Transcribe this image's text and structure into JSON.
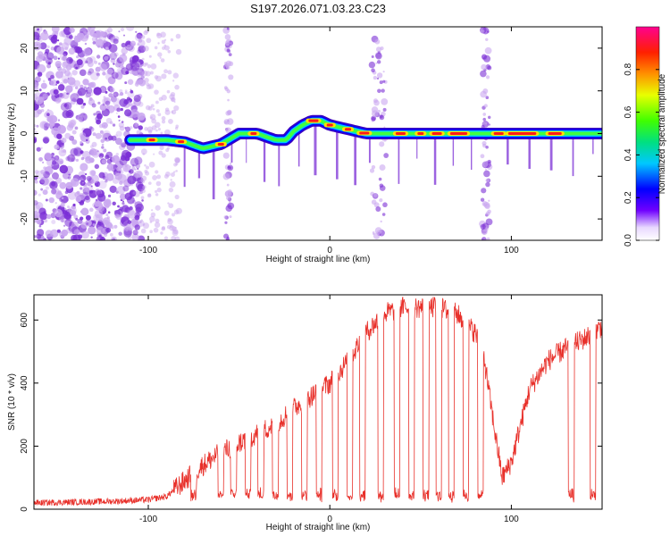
{
  "title": "S197.2026.071.03.23.C23",
  "colors": {
    "snr_line": "#e8302a",
    "background": "#ffffff",
    "noise_purple": "#7b2fd6",
    "noise_light": "#c9a6f0"
  },
  "chart_data": [
    {
      "type": "heatmap",
      "xlabel": "Height of straight line (km)",
      "ylabel": "Frequency (Hz)",
      "xlim": [
        -163,
        150
      ],
      "ylim": [
        -25,
        25
      ],
      "xticks": [
        -100,
        0,
        100
      ],
      "yticks": [
        -20,
        -10,
        0,
        10,
        20
      ],
      "ridge": {
        "x": [
          -110,
          -100,
          -90,
          -80,
          -70,
          -60,
          -50,
          -40,
          -30,
          -24,
          -20,
          -15,
          -10,
          -5,
          0,
          5,
          10,
          15,
          20,
          30,
          40,
          60,
          80,
          100,
          120,
          150
        ],
        "freq": [
          -1.5,
          -1.5,
          -1.5,
          -2,
          -3.5,
          -2.5,
          0,
          0,
          -1.5,
          -1.5,
          0.5,
          2,
          3,
          3,
          2,
          1.5,
          1,
          0.5,
          0,
          0,
          0,
          0,
          0,
          0,
          0,
          0
        ]
      },
      "colorbar": {
        "label": "Normalized spectral amplitude",
        "ticks": [
          0.0,
          0.2,
          0.4,
          0.6,
          0.8
        ],
        "tick_labels": [
          "0.0",
          "0.2",
          "0.4",
          "0.6",
          "0.8"
        ]
      }
    },
    {
      "type": "line",
      "xlabel": "Height of straight line (km)",
      "ylabel": "SNR (10 * v/v)",
      "xlim": [
        -163,
        150
      ],
      "ylim": [
        0,
        680
      ],
      "xticks": [
        -100,
        0,
        100
      ],
      "yticks": [
        0,
        200,
        400,
        600
      ],
      "envelope": {
        "x": [
          -163,
          -120,
          -100,
          -90,
          -80,
          -70,
          -60,
          -50,
          -40,
          -30,
          -20,
          -10,
          0,
          10,
          20,
          30,
          40,
          50,
          60,
          70,
          80,
          85,
          90,
          95,
          100,
          110,
          120,
          130,
          140,
          150
        ],
        "snr": [
          20,
          25,
          30,
          40,
          90,
          140,
          180,
          210,
          240,
          270,
          320,
          360,
          400,
          470,
          560,
          620,
          640,
          640,
          640,
          620,
          560,
          480,
          280,
          100,
          150,
          380,
          470,
          510,
          540,
          580
        ]
      },
      "dropouts_x": [
        -75,
        -60,
        -53,
        -45,
        -38,
        -30,
        -22,
        -14,
        -6,
        3,
        11,
        18,
        28,
        37,
        45,
        53,
        60,
        67,
        75,
        83,
        133,
        145
      ]
    }
  ]
}
